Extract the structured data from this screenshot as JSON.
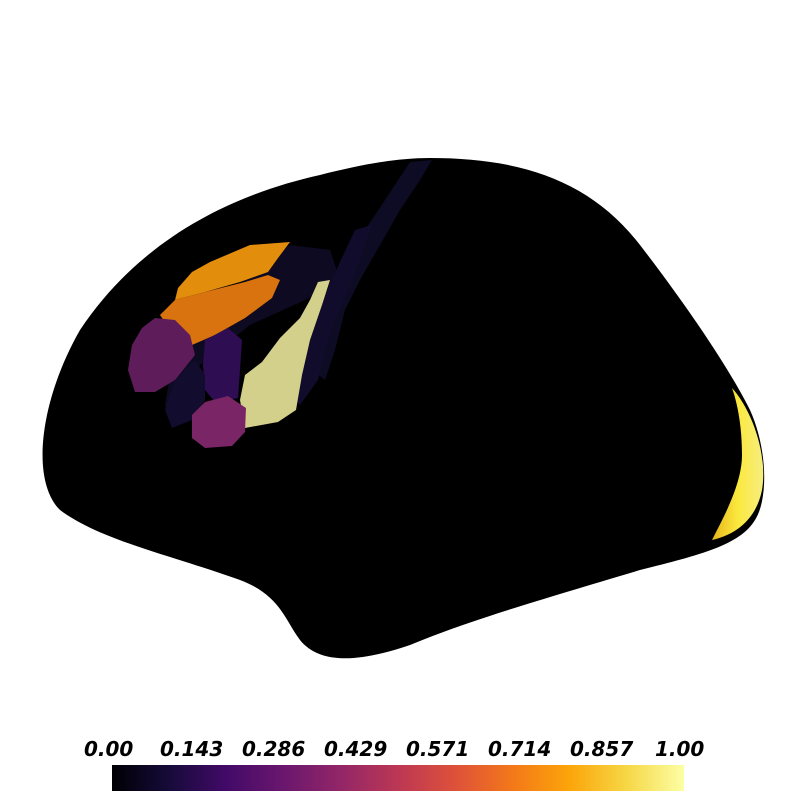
{
  "figure": {
    "colormap": "inferno",
    "background_color": "#ffffff",
    "surface_color": "#000000",
    "colorbar": {
      "min": 0.0,
      "max": 1.0,
      "ticks": [
        "0.00",
        "0.143",
        "0.286",
        "0.429",
        "0.571",
        "0.714",
        "0.857",
        "1.00"
      ],
      "stops": [
        "#000004",
        "#160b39",
        "#420a68",
        "#6a176e",
        "#932667",
        "#bc3754",
        "#dd513a",
        "#f37819",
        "#fca50a",
        "#f6d746",
        "#fcffa4"
      ]
    },
    "regions": [
      {
        "name": "occipital-pole",
        "value": 0.93,
        "color": "#f7e23c"
      },
      {
        "name": "superior-frontal-upper",
        "value": 0.78,
        "color": "#e38d0c"
      },
      {
        "name": "superior-frontal-lower",
        "value": 0.74,
        "color": "#d9730f"
      },
      {
        "name": "caudal-middle-frontal",
        "value": 0.9,
        "color": "#d3d08c"
      },
      {
        "name": "rostral-middle-frontal",
        "value": 0.38,
        "color": "#5e1d5a"
      },
      {
        "name": "pars-triangularis",
        "value": 0.41,
        "color": "#7a2666"
      },
      {
        "name": "pars-opercularis",
        "value": 0.24,
        "color": "#2e0d52"
      },
      {
        "name": "precentral-strip",
        "value": 0.08,
        "color": "#110c2b"
      },
      {
        "name": "central-strip",
        "value": 0.06,
        "color": "#0e0b24"
      },
      {
        "name": "frontal-dark",
        "value": 0.05,
        "color": "#0d0a22"
      }
    ]
  }
}
